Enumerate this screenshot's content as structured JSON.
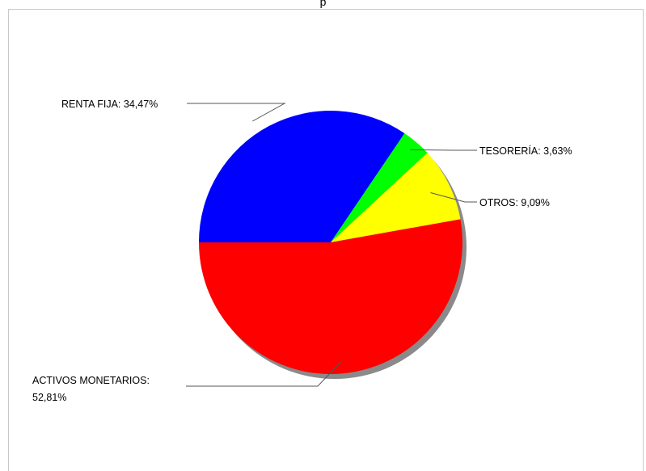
{
  "chart_data": {
    "type": "pie",
    "title": "",
    "slices": [
      {
        "label": "RENTA FIJA: 34,47%",
        "value": 34.47,
        "color": "#0000ff"
      },
      {
        "label": "TESORERÍA: 3,63%",
        "value": 3.63,
        "color": "#00ff00"
      },
      {
        "label": "OTROS: 9,09%",
        "value": 9.09,
        "color": "#ffff00"
      },
      {
        "label_lines": [
          "ACTIVOS MONETARIOS:",
          "52,81%"
        ],
        "value": 52.81,
        "color": "#ff0000"
      }
    ],
    "legend": "none",
    "labels": "outside with leader lines"
  },
  "top_fragment": "p"
}
